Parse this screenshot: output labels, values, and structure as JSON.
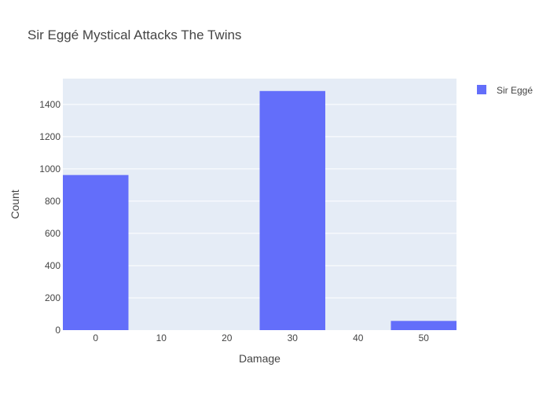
{
  "chart_data": {
    "type": "bar",
    "title": "Sir Eggé Mystical Attacks The Twins",
    "xlabel": "Damage",
    "ylabel": "Count",
    "categories": [
      "0",
      "10",
      "20",
      "30",
      "40",
      "50"
    ],
    "x": [
      0,
      10,
      20,
      30,
      40,
      50
    ],
    "series": [
      {
        "name": "Sir Eggé",
        "values": [
          962,
          0,
          0,
          1483,
          0,
          57
        ],
        "color": "#636efa"
      }
    ],
    "xlim": [
      -5,
      55
    ],
    "ylim": [
      0,
      1560
    ],
    "yticks": [
      0,
      200,
      400,
      600,
      800,
      1000,
      1200,
      1400
    ],
    "grid": true,
    "legend_position": "top-right",
    "plot_background": "#e5ecf6"
  }
}
